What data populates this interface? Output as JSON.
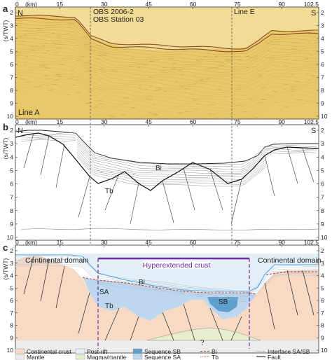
{
  "panels": {
    "a": {
      "letter": "a",
      "line_name": "Line A",
      "obs_label_1": "OBS 2006-2",
      "obs_label_2": "OBS Station 03",
      "crossline_label": "Line E"
    },
    "b": {
      "letter": "b",
      "label_bi": "Bi",
      "label_tb": "Tb"
    },
    "c": {
      "letter": "c",
      "domain_left": "Continental domain",
      "domain_right": "Continental domain",
      "hyper_label": "Hyperextended crust",
      "label_sa": "SA",
      "label_bi": "Bi",
      "label_tb": "Tb",
      "label_sb": "SB",
      "label_q": "?"
    }
  },
  "axes": {
    "x_unit": "(km)",
    "x_ticks": [
      "0",
      "15",
      "30",
      "45",
      "60",
      "75",
      "90",
      "102.5"
    ],
    "y_unit": "(s/TWT)",
    "y_ticks": [
      "2",
      "3",
      "4",
      "5",
      "6",
      "7",
      "8",
      "9",
      "10"
    ],
    "end_left": "N",
    "end_right": "S"
  },
  "legend": [
    {
      "label": "Continental crust",
      "kind": "fill",
      "color": "#f7d9c4"
    },
    {
      "label": "Mantle",
      "kind": "fill",
      "color": "#ececec"
    },
    {
      "label": "Post-rift",
      "kind": "fill",
      "color": "#e4eef7"
    },
    {
      "label": "Magma/mantle",
      "kind": "fill",
      "color": "#e6eccd"
    },
    {
      "label": "Sequence SB",
      "kind": "fill",
      "color": "#5f9fcc"
    },
    {
      "label": "Sequence SA",
      "kind": "fill",
      "color": "#bdd8ee"
    },
    {
      "label": "Bi",
      "kind": "line",
      "color": "#c0392b",
      "dash": "3,2"
    },
    {
      "label": "Tb",
      "kind": "line",
      "color": "#c0392b",
      "dash": "1,1.5"
    },
    {
      "label": "Interface SA/SB",
      "kind": "line",
      "color": "#b07a3a",
      "dash": "1,1.5"
    },
    {
      "label": "Fault",
      "kind": "line",
      "color": "#111111",
      "dash": ""
    }
  ],
  "colors": {
    "seismic_bg": "#e9c86a",
    "hyper_bracket": "#6a2fa0",
    "bi": "#c0392b",
    "continental_crust": "#f7d9c4"
  }
}
